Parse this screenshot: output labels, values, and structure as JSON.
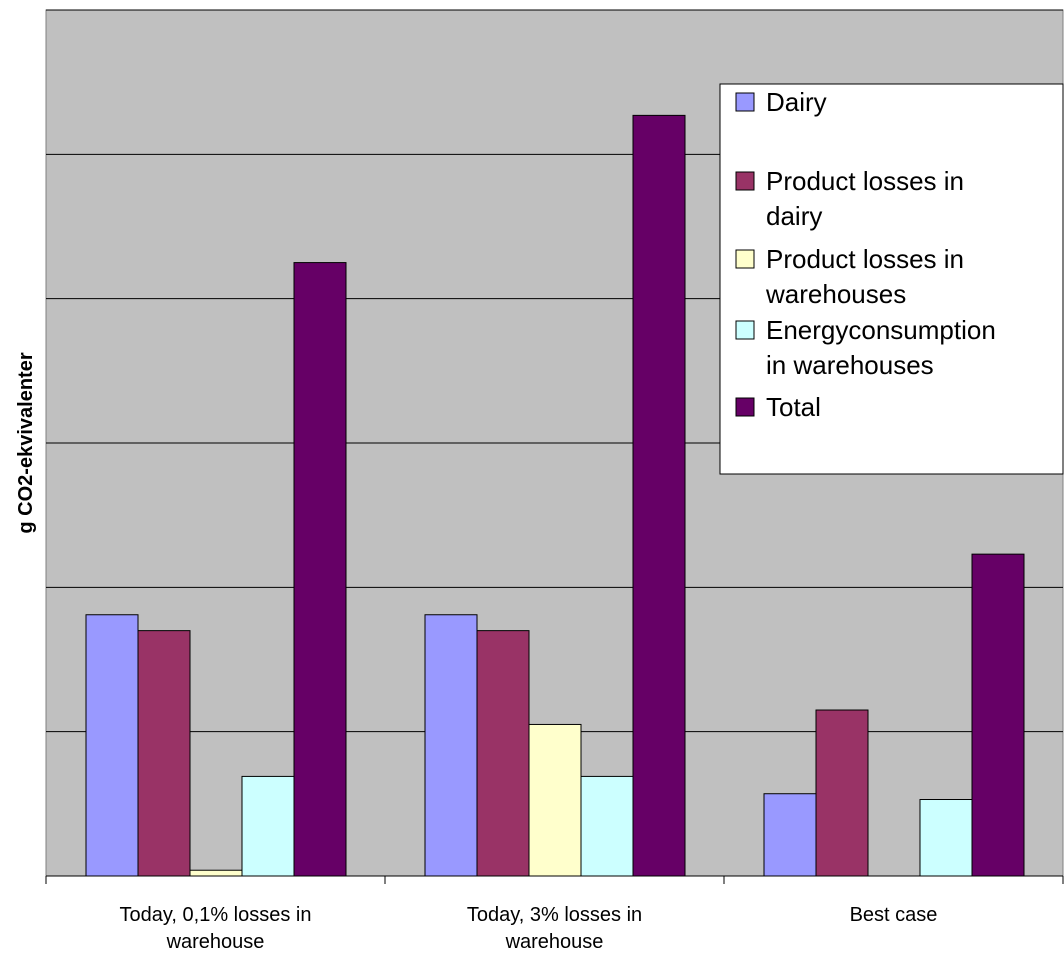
{
  "chart_data": {
    "type": "bar",
    "title": "",
    "xlabel": "",
    "ylabel": "g CO2-ekvivalenter",
    "categories": [
      [
        "Today,  0,1% losses in",
        "warehouse"
      ],
      [
        "Today,  3% losses in",
        "warehouse"
      ],
      [
        "Best case"
      ]
    ],
    "series": [
      {
        "name": "Dairy",
        "color": "#9999ff",
        "values": [
          1.81,
          1.81,
          0.57
        ]
      },
      {
        "name": "Product losses in dairy",
        "color": "#993366",
        "values": [
          1.7,
          1.7,
          1.15
        ]
      },
      {
        "name": "Product losses in warehouses",
        "color": "#ffffcc",
        "values": [
          0.04,
          1.05,
          0
        ]
      },
      {
        "name": "Energyconsumption in warehouses",
        "color": "#ccffff",
        "values": [
          0.69,
          0.69,
          0.53
        ]
      },
      {
        "name": "Total",
        "color": "#660066",
        "values": [
          4.25,
          5.27,
          2.23
        ]
      }
    ],
    "ylim": [
      0,
      6
    ],
    "gridlines": [
      0,
      1,
      2,
      3,
      4,
      5,
      6
    ],
    "grid": true,
    "plot_background": "#c0c0c0",
    "legend": {
      "position": "top-right",
      "entries": [
        [
          "Dairy"
        ],
        [
          "Product losses in",
          "dairy"
        ],
        [
          "Product losses in",
          "warehouses"
        ],
        [
          "Energyconsumption",
          "in warehouses"
        ],
        [
          "Total"
        ]
      ]
    }
  }
}
